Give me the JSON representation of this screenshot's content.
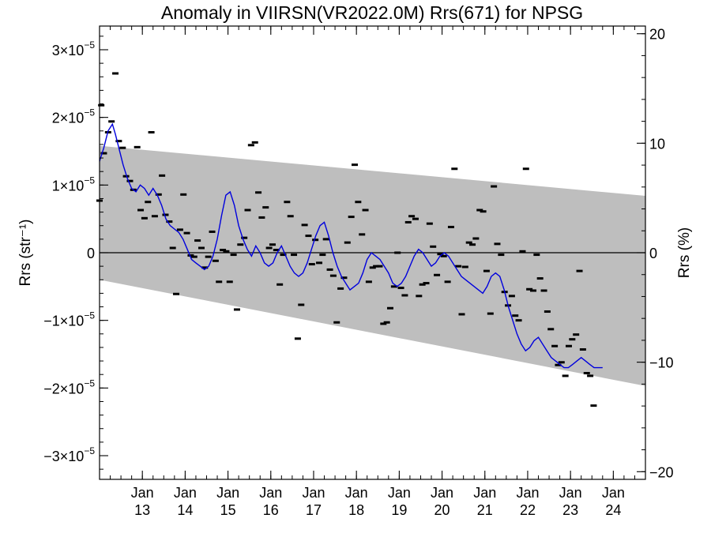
{
  "chart_data": {
    "type": "scatter",
    "title": "Anomaly in VIIRSN(VR2022.0M) Rrs(671) for NPSG",
    "ylabel_left": "Rrs (str⁻¹)",
    "ylabel_right": "Rrs (%)",
    "xlim": [
      2012.0,
      2024.75
    ],
    "ylim": [
      -3.35e-05,
      3.35e-05
    ],
    "ylim_right": [
      -20.7,
      20.7
    ],
    "grid": false,
    "x_ticks": [
      {
        "value": 2013.0,
        "line1": "Jan",
        "line2": "13"
      },
      {
        "value": 2014.0,
        "line1": "Jan",
        "line2": "14"
      },
      {
        "value": 2015.0,
        "line1": "Jan",
        "line2": "15"
      },
      {
        "value": 2016.0,
        "line1": "Jan",
        "line2": "16"
      },
      {
        "value": 2017.0,
        "line1": "Jan",
        "line2": "17"
      },
      {
        "value": 2018.0,
        "line1": "Jan",
        "line2": "18"
      },
      {
        "value": 2019.0,
        "line1": "Jan",
        "line2": "19"
      },
      {
        "value": 2020.0,
        "line1": "Jan",
        "line2": "20"
      },
      {
        "value": 2021.0,
        "line1": "Jan",
        "line2": "21"
      },
      {
        "value": 2022.0,
        "line1": "Jan",
        "line2": "22"
      },
      {
        "value": 2023.0,
        "line1": "Jan",
        "line2": "23"
      },
      {
        "value": 2024.0,
        "line1": "Jan",
        "line2": "24"
      }
    ],
    "y_ticks_left": [
      {
        "value": 3e-05,
        "mantissa": "3×10",
        "exp": "−5"
      },
      {
        "value": 2e-05,
        "mantissa": "2×10",
        "exp": "−5"
      },
      {
        "value": 1e-05,
        "mantissa": "1×10",
        "exp": "−5"
      },
      {
        "value": 0,
        "mantissa": "0",
        "exp": ""
      },
      {
        "value": -1e-05,
        "mantissa": "−1×10",
        "exp": "−5"
      },
      {
        "value": -2e-05,
        "mantissa": "−2×10",
        "exp": "−5"
      },
      {
        "value": -3e-05,
        "mantissa": "−3×10",
        "exp": "−5"
      }
    ],
    "y_ticks_right": [
      {
        "value": 20,
        "label": "20"
      },
      {
        "value": 10,
        "label": "10"
      },
      {
        "value": 0,
        "label": "0"
      },
      {
        "value": -10,
        "label": "−10"
      },
      {
        "value": -20,
        "label": "−20"
      }
    ],
    "envelope": {
      "upper": [
        [
          2012.0,
          1.58e-05
        ],
        [
          2024.75,
          8.4e-06
        ]
      ],
      "lower": [
        [
          2012.0,
          -4e-06
        ],
        [
          2024.75,
          -1.97e-05
        ]
      ],
      "color": "#bebebe"
    },
    "zero_line": 0,
    "scatter_points": [
      [
        2012.0,
        7.7e-06
      ],
      [
        2012.04,
        2.18e-05
      ],
      [
        2012.1,
        1.47e-05
      ],
      [
        2012.2,
        1.78e-05
      ],
      [
        2012.28,
        1.94e-05
      ],
      [
        2012.37,
        2.65e-05
      ],
      [
        2012.45,
        1.65e-05
      ],
      [
        2012.54,
        1.55e-05
      ],
      [
        2012.62,
        1.13e-05
      ],
      [
        2012.71,
        1.06e-05
      ],
      [
        2012.79,
        9.3e-06
      ],
      [
        2012.88,
        1.56e-05
      ],
      [
        2012.96,
        6.3e-06
      ],
      [
        2013.05,
        5.1e-06
      ],
      [
        2013.13,
        7.5e-06
      ],
      [
        2013.21,
        1.78e-05
      ],
      [
        2013.29,
        5.4e-06
      ],
      [
        2013.38,
        8.6e-06
      ],
      [
        2013.46,
        1.14e-05
      ],
      [
        2013.54,
        5.6e-06
      ],
      [
        2013.63,
        4.6e-06
      ],
      [
        2013.71,
        7e-07
      ],
      [
        2013.79,
        -6.1e-06
      ],
      [
        2013.88,
        3.4e-06
      ],
      [
        2013.96,
        8.6e-06
      ],
      [
        2014.04,
        2.9e-06
      ],
      [
        2014.13,
        -4e-07
      ],
      [
        2014.21,
        -6e-07
      ],
      [
        2014.29,
        1.8e-06
      ],
      [
        2014.38,
        7e-07
      ],
      [
        2014.46,
        -2.2e-06
      ],
      [
        2014.54,
        -6e-07
      ],
      [
        2014.63,
        3.1e-06
      ],
      [
        2014.71,
        -1.2e-06
      ],
      [
        2014.79,
        -4.3e-06
      ],
      [
        2014.88,
        4e-07
      ],
      [
        2014.96,
        2e-07
      ],
      [
        2015.04,
        -4.3e-06
      ],
      [
        2015.13,
        -3e-07
      ],
      [
        2015.21,
        -8.4e-06
      ],
      [
        2015.29,
        1.2e-06
      ],
      [
        2015.38,
        2.2e-06
      ],
      [
        2015.46,
        6.3e-06
      ],
      [
        2015.54,
        1.59e-05
      ],
      [
        2015.63,
        1.63e-05
      ],
      [
        2015.71,
        8.9e-06
      ],
      [
        2015.79,
        5.2e-06
      ],
      [
        2015.88,
        6.7e-06
      ],
      [
        2015.96,
        7e-07
      ],
      [
        2016.04,
        1.2e-06
      ],
      [
        2016.13,
        4e-07
      ],
      [
        2016.21,
        -4.7e-06
      ],
      [
        2016.29,
        -3e-07
      ],
      [
        2016.38,
        7.5e-06
      ],
      [
        2016.46,
        5.4e-06
      ],
      [
        2016.54,
        -3e-07
      ],
      [
        2016.63,
        -1.27e-05
      ],
      [
        2016.71,
        -7.7e-06
      ],
      [
        2016.79,
        4.1e-06
      ],
      [
        2016.88,
        2.5e-06
      ],
      [
        2016.96,
        -1.7e-06
      ],
      [
        2017.04,
        1.9e-06
      ],
      [
        2017.13,
        -1.5e-06
      ],
      [
        2017.21,
        -3e-07
      ],
      [
        2017.29,
        2e-06
      ],
      [
        2017.38,
        -2.5e-06
      ],
      [
        2017.46,
        -3.4e-06
      ],
      [
        2017.54,
        -1.03e-05
      ],
      [
        2017.63,
        -5.3e-06
      ],
      [
        2017.71,
        -3.7e-06
      ],
      [
        2017.79,
        1.5e-06
      ],
      [
        2017.88,
        5.3e-06
      ],
      [
        2017.96,
        1.3e-05
      ],
      [
        2018.04,
        7.5e-06
      ],
      [
        2018.13,
        2.7e-06
      ],
      [
        2018.21,
        6.3e-06
      ],
      [
        2018.29,
        -4.3e-06
      ],
      [
        2018.38,
        -2.2e-06
      ],
      [
        2018.46,
        -2e-06
      ],
      [
        2018.54,
        -2e-06
      ],
      [
        2018.63,
        -1.05e-05
      ],
      [
        2018.71,
        -1.03e-05
      ],
      [
        2018.79,
        -8.2e-06
      ],
      [
        2018.88,
        -5e-06
      ],
      [
        2018.96,
        0.0
      ],
      [
        2019.04,
        -5.2e-06
      ],
      [
        2019.13,
        -6.3e-06
      ],
      [
        2019.21,
        4.5e-06
      ],
      [
        2019.29,
        5.4e-06
      ],
      [
        2019.38,
        5e-06
      ],
      [
        2019.46,
        -6.4e-06
      ],
      [
        2019.54,
        -4.7e-06
      ],
      [
        2019.63,
        -4.5e-06
      ],
      [
        2019.71,
        4.3e-06
      ],
      [
        2019.79,
        9e-07
      ],
      [
        2019.88,
        -3.3e-06
      ],
      [
        2019.96,
        -2e-07
      ],
      [
        2020.04,
        -5e-07
      ],
      [
        2020.13,
        -4.3e-06
      ],
      [
        2020.21,
        3.8e-06
      ],
      [
        2020.29,
        1.24e-05
      ],
      [
        2020.38,
        -2e-06
      ],
      [
        2020.46,
        -9.1e-06
      ],
      [
        2020.54,
        -2.1e-06
      ],
      [
        2020.63,
        1.5e-06
      ],
      [
        2020.71,
        1.2e-06
      ],
      [
        2020.79,
        2.1e-06
      ],
      [
        2020.88,
        6.3e-06
      ],
      [
        2020.96,
        6.1e-06
      ],
      [
        2021.04,
        -2.7e-06
      ],
      [
        2021.13,
        -9e-06
      ],
      [
        2021.21,
        9.8e-06
      ],
      [
        2021.29,
        1.3e-06
      ],
      [
        2021.38,
        -3e-07
      ],
      [
        2021.46,
        -5.8e-06
      ],
      [
        2021.54,
        -7.8e-06
      ],
      [
        2021.63,
        -6.4e-06
      ],
      [
        2021.71,
        -9.3e-06
      ],
      [
        2021.79,
        -1e-05
      ],
      [
        2021.88,
        2e-07
      ],
      [
        2021.96,
        1.24e-05
      ],
      [
        2022.04,
        -5.4e-06
      ],
      [
        2022.13,
        -5.6e-06
      ],
      [
        2022.21,
        -3e-07
      ],
      [
        2022.29,
        -3.8e-06
      ],
      [
        2022.38,
        -5.6e-06
      ],
      [
        2022.46,
        -8.7e-06
      ],
      [
        2022.54,
        -1.13e-05
      ],
      [
        2022.63,
        -1.38e-05
      ],
      [
        2022.71,
        -1.66e-05
      ],
      [
        2022.79,
        -1.62e-05
      ],
      [
        2022.88,
        -1.82e-05
      ],
      [
        2022.96,
        -1.38e-05
      ],
      [
        2023.04,
        -1.28e-05
      ],
      [
        2023.13,
        -1.21e-05
      ],
      [
        2023.21,
        -2.7e-06
      ],
      [
        2023.29,
        -1.43e-05
      ],
      [
        2023.38,
        -1.78e-05
      ],
      [
        2023.46,
        -1.82e-05
      ],
      [
        2023.54,
        -2.26e-05
      ]
    ],
    "running_mean": {
      "color": "#0000dd",
      "x": [
        2012.0,
        2012.1,
        2012.2,
        2012.3,
        2012.37,
        2012.45,
        2012.55,
        2012.65,
        2012.75,
        2012.85,
        2012.95,
        2013.05,
        2013.15,
        2013.25,
        2013.35,
        2013.45,
        2013.55,
        2013.65,
        2013.75,
        2013.85,
        2013.95,
        2014.05,
        2014.15,
        2014.25,
        2014.35,
        2014.45,
        2014.55,
        2014.65,
        2014.75,
        2014.85,
        2014.95,
        2015.05,
        2015.15,
        2015.25,
        2015.35,
        2015.45,
        2015.55,
        2015.65,
        2015.75,
        2015.85,
        2015.95,
        2016.05,
        2016.15,
        2016.25,
        2016.35,
        2016.45,
        2016.55,
        2016.65,
        2016.75,
        2016.85,
        2016.95,
        2017.05,
        2017.15,
        2017.25,
        2017.35,
        2017.45,
        2017.55,
        2017.65,
        2017.75,
        2017.85,
        2017.95,
        2018.05,
        2018.15,
        2018.25,
        2018.35,
        2018.45,
        2018.55,
        2018.65,
        2018.75,
        2018.85,
        2018.95,
        2019.05,
        2019.15,
        2019.25,
        2019.35,
        2019.45,
        2019.55,
        2019.65,
        2019.75,
        2019.85,
        2019.95,
        2020.05,
        2020.15,
        2020.25,
        2020.35,
        2020.45,
        2020.55,
        2020.65,
        2020.75,
        2020.85,
        2020.95,
        2021.05,
        2021.15,
        2021.25,
        2021.35,
        2021.45,
        2021.55,
        2021.65,
        2021.75,
        2021.85,
        2021.95,
        2022.05,
        2022.15,
        2022.25,
        2022.35,
        2022.45,
        2022.55,
        2022.65,
        2022.75,
        2022.85,
        2022.95,
        2023.05,
        2023.15,
        2023.25,
        2023.35,
        2023.45,
        2023.55,
        2023.65,
        2023.75
      ],
      "y": [
        1.35e-05,
        1.55e-05,
        1.8e-05,
        1.9e-05,
        1.75e-05,
        1.55e-05,
        1.3e-05,
        1.1e-05,
        9.5e-06,
        9e-06,
        1e-05,
        9.5e-06,
        8.5e-06,
        9.5e-06,
        8.5e-06,
        7e-06,
        5e-06,
        4e-06,
        3.5e-06,
        3e-06,
        2e-06,
        5e-07,
        -1e-06,
        -1.5e-06,
        -2e-06,
        -2.5e-06,
        -2e-06,
        -5e-07,
        2e-06,
        5.5e-06,
        8.5e-06,
        9e-06,
        7e-06,
        4e-06,
        2e-06,
        5e-07,
        -5e-07,
        1e-06,
        0.0,
        -1.5e-06,
        -2e-06,
        -1.5e-06,
        0.0,
        1e-06,
        -5e-07,
        -2e-06,
        -3e-06,
        -3.5e-06,
        -3e-06,
        -1.5e-06,
        5e-07,
        2.5e-06,
        4e-06,
        4.5e-06,
        2.5e-06,
        0.0,
        -2e-06,
        -3.5e-06,
        -4.5e-06,
        -5.5e-06,
        -5e-06,
        -4.5e-06,
        -3e-06,
        -1e-06,
        0.0,
        -5e-07,
        -1e-06,
        -2e-06,
        -3e-06,
        -4.5e-06,
        -5e-06,
        -4.5e-06,
        -3.5e-06,
        -2e-06,
        -5e-07,
        5e-07,
        0.0,
        -1e-06,
        -2e-06,
        -1.5e-06,
        -5e-07,
        0.0,
        -5e-07,
        -1.5e-06,
        -2.5e-06,
        -3.5e-06,
        -4e-06,
        -4.5e-06,
        -5e-06,
        -5.5e-06,
        -6e-06,
        -5e-06,
        -3.5e-06,
        -3e-06,
        -3.5e-06,
        -5.5e-06,
        -8e-06,
        -1e-05,
        -1.2e-05,
        -1.35e-05,
        -1.45e-05,
        -1.4e-05,
        -1.3e-05,
        -1.25e-05,
        -1.35e-05,
        -1.45e-05,
        -1.55e-05,
        -1.6e-05,
        -1.65e-05,
        -1.7e-05,
        -1.7e-05,
        -1.65e-05,
        -1.6e-05,
        -1.55e-05,
        -1.6e-05,
        -1.65e-05,
        -1.7e-05,
        -1.7e-05,
        -1.7e-05
      ]
    }
  }
}
